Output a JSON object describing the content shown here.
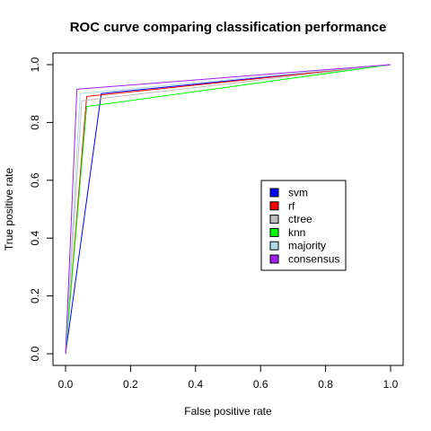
{
  "chart_data": {
    "type": "line",
    "title": "ROC curve comparing classification performance",
    "xlabel": "False positive rate",
    "ylabel": "True positive rate",
    "xlim": [
      0,
      1
    ],
    "ylim": [
      0,
      1
    ],
    "xticks": [
      "0.0",
      "0.2",
      "0.4",
      "0.6",
      "0.8",
      "1.0"
    ],
    "yticks": [
      "0.0",
      "0.2",
      "0.4",
      "0.6",
      "0.8",
      "1.0"
    ],
    "grid": false,
    "legend_position": "center-right",
    "series": [
      {
        "name": "svm",
        "color": "#0000ff",
        "x": [
          0,
          0.11,
          1.0
        ],
        "y": [
          0,
          0.9,
          1.0
        ]
      },
      {
        "name": "rf",
        "color": "#ff0000",
        "x": [
          0,
          0.065,
          1.0
        ],
        "y": [
          0,
          0.89,
          1.0
        ]
      },
      {
        "name": "ctree",
        "color": "#bebebe",
        "x": [
          0,
          0.05,
          1.0
        ],
        "y": [
          0,
          0.875,
          1.0
        ]
      },
      {
        "name": "knn",
        "color": "#00ff00",
        "x": [
          0,
          0.065,
          1.0
        ],
        "y": [
          0,
          0.855,
          1.0
        ]
      },
      {
        "name": "majority",
        "color": "#add8e6",
        "x": [
          0,
          0.045,
          1.0
        ],
        "y": [
          0,
          0.9,
          1.0
        ]
      },
      {
        "name": "consensus",
        "color": "#a020f0",
        "x": [
          0,
          0.035,
          1.0
        ],
        "y": [
          0,
          0.915,
          1.0
        ]
      }
    ]
  }
}
